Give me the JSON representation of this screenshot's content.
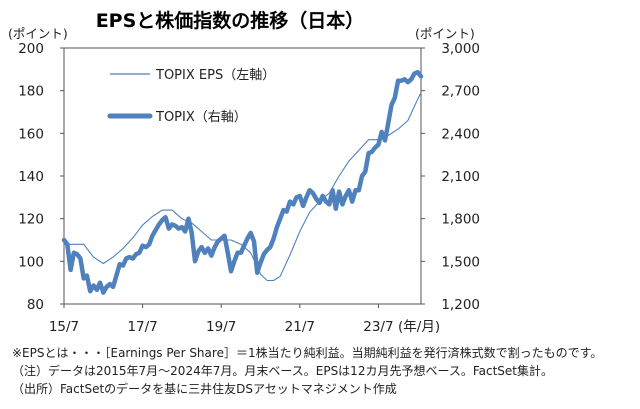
{
  "chart_data": {
    "type": "line",
    "title": "EPSと株価指数の推移（日本）",
    "left_unit_label": "(ポイント)",
    "right_unit_label": "(ポイント)",
    "x_unit_label": "(年/月)",
    "x_tick_labels": [
      "15/7",
      "17/7",
      "19/7",
      "21/7",
      "23/7"
    ],
    "y_left_ticks": [
      "200",
      "180",
      "160",
      "140",
      "120",
      "100",
      "80"
    ],
    "y_right_ticks": [
      "3,000",
      "2,700",
      "2,400",
      "2,100",
      "1,800",
      "1,500",
      "1,200"
    ],
    "ylim_left": [
      80,
      200
    ],
    "ylim_right": [
      1200,
      3000
    ],
    "x_start": "2015/7",
    "x_end": "2024/7",
    "series": [
      {
        "name": "TOPIX EPS（左軸）",
        "axis": "left",
        "style": "thin",
        "color": "#4f81bd",
        "points": [
          [
            0,
            108
          ],
          [
            3,
            108
          ],
          [
            6,
            108
          ],
          [
            9,
            102
          ],
          [
            12,
            99
          ],
          [
            15,
            102
          ],
          [
            18,
            106
          ],
          [
            21,
            111
          ],
          [
            24,
            117
          ],
          [
            27,
            121
          ],
          [
            30,
            124
          ],
          [
            33,
            124
          ],
          [
            36,
            120
          ],
          [
            39,
            118
          ],
          [
            42,
            114
          ],
          [
            45,
            110
          ],
          [
            48,
            110
          ],
          [
            51,
            110
          ],
          [
            54,
            108
          ],
          [
            57,
            104
          ],
          [
            60,
            94
          ],
          [
            62,
            91
          ],
          [
            64,
            91
          ],
          [
            66,
            93
          ],
          [
            69,
            103
          ],
          [
            72,
            114
          ],
          [
            75,
            123
          ],
          [
            78,
            128
          ],
          [
            81,
            132
          ],
          [
            84,
            140
          ],
          [
            87,
            147
          ],
          [
            90,
            152
          ],
          [
            93,
            157
          ],
          [
            96,
            157
          ],
          [
            99,
            159
          ],
          [
            102,
            162
          ],
          [
            105,
            166
          ],
          [
            108,
            176
          ],
          [
            109,
            179
          ]
        ]
      },
      {
        "name": "TOPIX（右軸）",
        "axis": "right",
        "style": "thick",
        "color": "#4f81bd",
        "points": [
          [
            0,
            1650
          ],
          [
            1,
            1620
          ],
          [
            2,
            1440
          ],
          [
            3,
            1560
          ],
          [
            4,
            1550
          ],
          [
            5,
            1520
          ],
          [
            6,
            1380
          ],
          [
            7,
            1400
          ],
          [
            8,
            1290
          ],
          [
            9,
            1330
          ],
          [
            10,
            1300
          ],
          [
            11,
            1350
          ],
          [
            12,
            1280
          ],
          [
            13,
            1320
          ],
          [
            14,
            1340
          ],
          [
            15,
            1320
          ],
          [
            16,
            1400
          ],
          [
            17,
            1480
          ],
          [
            18,
            1470
          ],
          [
            19,
            1520
          ],
          [
            20,
            1530
          ],
          [
            21,
            1520
          ],
          [
            22,
            1550
          ],
          [
            23,
            1560
          ],
          [
            24,
            1610
          ],
          [
            25,
            1600
          ],
          [
            26,
            1620
          ],
          [
            27,
            1680
          ],
          [
            28,
            1720
          ],
          [
            29,
            1760
          ],
          [
            30,
            1790
          ],
          [
            31,
            1810
          ],
          [
            32,
            1730
          ],
          [
            33,
            1760
          ],
          [
            34,
            1750
          ],
          [
            35,
            1730
          ],
          [
            36,
            1740
          ],
          [
            37,
            1710
          ],
          [
            38,
            1800
          ],
          [
            39,
            1700
          ],
          [
            40,
            1500
          ],
          [
            41,
            1570
          ],
          [
            42,
            1600
          ],
          [
            43,
            1560
          ],
          [
            44,
            1590
          ],
          [
            45,
            1540
          ],
          [
            46,
            1600
          ],
          [
            47,
            1640
          ],
          [
            48,
            1660
          ],
          [
            49,
            1680
          ],
          [
            50,
            1560
          ],
          [
            51,
            1430
          ],
          [
            52,
            1500
          ],
          [
            53,
            1560
          ],
          [
            54,
            1560
          ],
          [
            55,
            1610
          ],
          [
            56,
            1660
          ],
          [
            57,
            1700
          ],
          [
            58,
            1640
          ],
          [
            59,
            1420
          ],
          [
            60,
            1490
          ],
          [
            61,
            1550
          ],
          [
            62,
            1580
          ],
          [
            63,
            1600
          ],
          [
            64,
            1660
          ],
          [
            65,
            1740
          ],
          [
            66,
            1800
          ],
          [
            67,
            1860
          ],
          [
            68,
            1850
          ],
          [
            69,
            1920
          ],
          [
            70,
            1900
          ],
          [
            71,
            1950
          ],
          [
            72,
            1960
          ],
          [
            73,
            1890
          ],
          [
            74,
            1950
          ],
          [
            75,
            2000
          ],
          [
            76,
            1980
          ],
          [
            77,
            1940
          ],
          [
            78,
            1910
          ],
          [
            79,
            1960
          ],
          [
            80,
            1920
          ],
          [
            81,
            1900
          ],
          [
            82,
            2000
          ],
          [
            83,
            1870
          ],
          [
            84,
            1990
          ],
          [
            85,
            1900
          ],
          [
            86,
            1960
          ],
          [
            87,
            2000
          ],
          [
            88,
            1920
          ],
          [
            89,
            2000
          ],
          [
            90,
            2000
          ],
          [
            91,
            2100
          ],
          [
            92,
            2130
          ],
          [
            93,
            2260
          ],
          [
            94,
            2270
          ],
          [
            95,
            2300
          ],
          [
            96,
            2320
          ],
          [
            97,
            2410
          ],
          [
            98,
            2350
          ],
          [
            99,
            2470
          ],
          [
            100,
            2600
          ],
          [
            101,
            2650
          ],
          [
            102,
            2770
          ],
          [
            103,
            2770
          ],
          [
            104,
            2780
          ],
          [
            105,
            2760
          ],
          [
            106,
            2780
          ],
          [
            107,
            2820
          ],
          [
            108,
            2830
          ],
          [
            109,
            2800
          ]
        ]
      }
    ]
  },
  "notes": [
    "※EPSとは・・・［Earnings Per Share］＝1株当たり純利益。当期純利益を発行済株式数で割ったものです。",
    "（注）データは2015年7月～2024年7月。月末ベース。EPSは12カ月先予想ベース。FactSet集計。",
    "（出所）FactSetのデータを基に三井住友DSアセットマネジメント作成"
  ]
}
